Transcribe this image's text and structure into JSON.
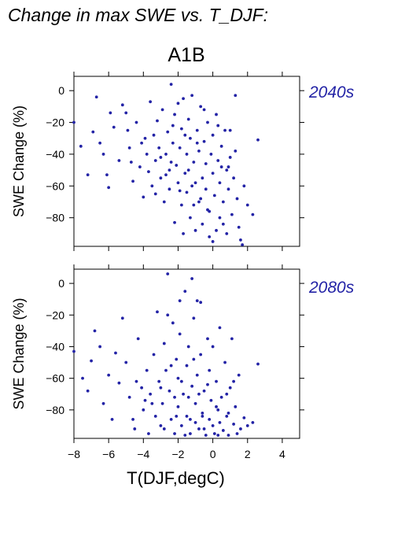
{
  "title": "Change in max SWE vs. T_DJF:",
  "scenario": "A1B",
  "colors": {
    "points": "#2323a6",
    "label": "#2323a6"
  },
  "chart_data": [
    {
      "type": "scatter",
      "period_label": "2040s",
      "xlabel": "",
      "ylabel": "SWE Change (%)",
      "xlim": [
        -8,
        5
      ],
      "ylim": [
        -98,
        9
      ],
      "xticks": [
        -8,
        -6,
        -4,
        -2,
        0,
        2,
        4
      ],
      "yticks": [
        0,
        -20,
        -40,
        -60,
        -80
      ],
      "show_xtick_labels": false,
      "grid": false,
      "points": [
        [
          -8,
          -20
        ],
        [
          -7.6,
          -35
        ],
        [
          -7.2,
          -53
        ],
        [
          -6.9,
          -26
        ],
        [
          -6.7,
          -4
        ],
        [
          -6.5,
          -33
        ],
        [
          -6.3,
          -40
        ],
        [
          -6.1,
          -53
        ],
        [
          -6.0,
          -61
        ],
        [
          -5.9,
          -14
        ],
        [
          -5.7,
          -23
        ],
        [
          -5.4,
          -44
        ],
        [
          -5.2,
          -9
        ],
        [
          -5,
          -14
        ],
        [
          -4.9,
          -25
        ],
        [
          -4.8,
          -36
        ],
        [
          -4.7,
          -45
        ],
        [
          -4.6,
          -57
        ],
        [
          -4.4,
          -20
        ],
        [
          -4.2,
          -48
        ],
        [
          -4,
          -67
        ],
        [
          -3.9,
          -30
        ],
        [
          -3.8,
          -40
        ],
        [
          -3.7,
          -51
        ],
        [
          -3.6,
          -7
        ],
        [
          -3.5,
          -60
        ],
        [
          -3.4,
          -28
        ],
        [
          -3.3,
          -44
        ],
        [
          -3.2,
          -19
        ],
        [
          -3.1,
          -36
        ],
        [
          -3.0,
          -55
        ],
        [
          -2.9,
          -12
        ],
        [
          -2.8,
          -70
        ],
        [
          -2.7,
          -40
        ],
        [
          -2.6,
          -26
        ],
        [
          -2.5,
          -50
        ],
        [
          -2.5,
          -62
        ],
        [
          -2.4,
          4
        ],
        [
          -2.3,
          -33
        ],
        [
          -2.2,
          -83
        ],
        [
          -2.2,
          -15
        ],
        [
          -2.1,
          -47
        ],
        [
          -2.0,
          -58
        ],
        [
          -2.0,
          -8
        ],
        [
          -1.9,
          -36
        ],
        [
          -1.8,
          -72
        ],
        [
          -1.8,
          -24
        ],
        [
          -1.7,
          -90
        ],
        [
          -1.6,
          -52
        ],
        [
          -1.5,
          -40
        ],
        [
          -1.5,
          -64
        ],
        [
          -1.4,
          -18
        ],
        [
          -1.3,
          -30
        ],
        [
          -1.3,
          -80
        ],
        [
          -1.2,
          -3
        ],
        [
          -1.1,
          -45
        ],
        [
          -1.0,
          -58
        ],
        [
          -1.0,
          -88
        ],
        [
          -0.9,
          -25
        ],
        [
          -0.8,
          -70
        ],
        [
          -0.8,
          -38
        ],
        [
          -0.7,
          -10
        ],
        [
          -0.6,
          -55
        ],
        [
          -0.6,
          -84
        ],
        [
          -0.5,
          -32
        ],
        [
          -0.4,
          -62
        ],
        [
          -0.4,
          -46
        ],
        [
          -0.3,
          -20
        ],
        [
          -0.2,
          -76
        ],
        [
          -0.2,
          -92
        ],
        [
          -0.1,
          -40
        ],
        [
          0,
          -52
        ],
        [
          0,
          -28
        ],
        [
          0.1,
          -66
        ],
        [
          0.2,
          -88
        ],
        [
          0.2,
          -15
        ],
        [
          0.3,
          -44
        ],
        [
          0.4,
          -58
        ],
        [
          0.4,
          -80
        ],
        [
          0.5,
          -35
        ],
        [
          0.6,
          -70
        ],
        [
          0.7,
          -25
        ],
        [
          0.8,
          -50
        ],
        [
          0.8,
          -90
        ],
        [
          0.9,
          -62
        ],
        [
          1.0,
          -42
        ],
        [
          1.1,
          -78
        ],
        [
          1.2,
          -55
        ],
        [
          1.3,
          -3
        ],
        [
          1.4,
          -68
        ],
        [
          1.5,
          -86
        ],
        [
          1.6,
          -94
        ],
        [
          1.7,
          -97
        ],
        [
          1.8,
          -60
        ],
        [
          2.0,
          -72
        ],
        [
          2.3,
          -78
        ],
        [
          2.6,
          -31
        ],
        [
          -2.4,
          -45
        ],
        [
          -1.9,
          -63
        ],
        [
          -1.4,
          -50
        ],
        [
          -0.9,
          -33
        ],
        [
          -0.3,
          -75
        ],
        [
          0.3,
          -22
        ],
        [
          0.9,
          -48
        ],
        [
          -2.7,
          -53
        ],
        [
          -3.3,
          -65
        ],
        [
          -1.6,
          -28
        ],
        [
          -1.1,
          -72
        ],
        [
          -0.5,
          -12
        ],
        [
          0.6,
          -84
        ],
        [
          1.3,
          -38
        ],
        [
          -4.1,
          -33
        ],
        [
          -3.0,
          -42
        ],
        [
          -2.3,
          -22
        ],
        [
          -1.7,
          -5
        ],
        [
          -1.2,
          -60
        ],
        [
          -0.7,
          -68
        ],
        [
          0.0,
          -95
        ],
        [
          0.5,
          -48
        ],
        [
          1.0,
          -25
        ]
      ]
    },
    {
      "type": "scatter",
      "period_label": "2080s",
      "xlabel": "T(DJF,degC)",
      "ylabel": "SWE Change (%)",
      "xlim": [
        -8,
        5
      ],
      "ylim": [
        -98,
        9
      ],
      "xticks": [
        -8,
        -6,
        -4,
        -2,
        0,
        2,
        4
      ],
      "xtick_labels": [
        "−8",
        "−6",
        "−4",
        "−2",
        "0",
        "2",
        "4"
      ],
      "yticks": [
        0,
        -20,
        -40,
        -60,
        -80
      ],
      "show_xtick_labels": true,
      "grid": false,
      "points": [
        [
          -8,
          -43
        ],
        [
          -7.5,
          -60
        ],
        [
          -7.2,
          -68
        ],
        [
          -7.0,
          -49
        ],
        [
          -6.8,
          -30
        ],
        [
          -6.5,
          -40
        ],
        [
          -6.3,
          -76
        ],
        [
          -6.0,
          -58
        ],
        [
          -5.8,
          -86
        ],
        [
          -5.6,
          -44
        ],
        [
          -5.4,
          -63
        ],
        [
          -5.2,
          -22
        ],
        [
          -5,
          -50
        ],
        [
          -4.8,
          -72
        ],
        [
          -4.6,
          -86
        ],
        [
          -4.5,
          -92
        ],
        [
          -4.3,
          -35
        ],
        [
          -4.1,
          -66
        ],
        [
          -4,
          -80
        ],
        [
          -3.8,
          -55
        ],
        [
          -3.7,
          -95
        ],
        [
          -3.6,
          -70
        ],
        [
          -3.4,
          -45
        ],
        [
          -3.3,
          -84
        ],
        [
          -3.2,
          -18
        ],
        [
          -3.1,
          -62
        ],
        [
          -3.0,
          -90
        ],
        [
          -2.9,
          -76
        ],
        [
          -2.8,
          -38
        ],
        [
          -2.7,
          -55
        ],
        [
          -2.6,
          6
        ],
        [
          -2.5,
          -68
        ],
        [
          -2.4,
          -86
        ],
        [
          -2.3,
          -25
        ],
        [
          -2.2,
          -95
        ],
        [
          -2.1,
          -48
        ],
        [
          -2.0,
          -78
        ],
        [
          -2.0,
          -60
        ],
        [
          -1.9,
          -32
        ],
        [
          -1.8,
          -90
        ],
        [
          -1.7,
          -70
        ],
        [
          -1.6,
          -5
        ],
        [
          -1.5,
          -84
        ],
        [
          -1.5,
          -52
        ],
        [
          -1.4,
          -40
        ],
        [
          -1.3,
          -95
        ],
        [
          -1.2,
          -65
        ],
        [
          -1.1,
          -22
        ],
        [
          -1.0,
          -88
        ],
        [
          -1.0,
          -76
        ],
        [
          -0.9,
          -58
        ],
        [
          -0.8,
          -92
        ],
        [
          -0.7,
          -12
        ],
        [
          -0.7,
          -45
        ],
        [
          -0.6,
          -82
        ],
        [
          -0.5,
          -68
        ],
        [
          -0.4,
          -96
        ],
        [
          -0.3,
          -35
        ],
        [
          -0.2,
          -86
        ],
        [
          -0.2,
          -55
        ],
        [
          -0.1,
          -74
        ],
        [
          0,
          -90
        ],
        [
          0,
          -40
        ],
        [
          0.1,
          -95
        ],
        [
          0.2,
          -62
        ],
        [
          0.3,
          -80
        ],
        [
          0.4,
          -28
        ],
        [
          0.4,
          -88
        ],
        [
          0.5,
          -72
        ],
        [
          0.6,
          -93
        ],
        [
          0.7,
          -50
        ],
        [
          0.8,
          -84
        ],
        [
          0.9,
          -96
        ],
        [
          1.0,
          -66
        ],
        [
          1.1,
          -35
        ],
        [
          1.2,
          -89
        ],
        [
          1.3,
          -78
        ],
        [
          1.4,
          -95
        ],
        [
          1.5,
          -58
        ],
        [
          1.6,
          -92
        ],
        [
          1.8,
          -85
        ],
        [
          2.0,
          -90
        ],
        [
          2.3,
          -88
        ],
        [
          2.6,
          -51
        ],
        [
          -2.6,
          -20
        ],
        [
          -1.9,
          -11
        ],
        [
          -1.2,
          3
        ],
        [
          -0.9,
          -11
        ],
        [
          -3.5,
          -76
        ],
        [
          -2.8,
          -92
        ],
        [
          -2.2,
          -72
        ],
        [
          -1.6,
          -96
        ],
        [
          -1.1,
          -48
        ],
        [
          -0.5,
          -92
        ],
        [
          0.2,
          -78
        ],
        [
          0.8,
          -70
        ],
        [
          -4.4,
          -62
        ],
        [
          -3.9,
          -74
        ],
        [
          -3.0,
          -66
        ],
        [
          -2.4,
          -52
        ],
        [
          -1.8,
          -62
        ],
        [
          -1.3,
          -86
        ],
        [
          -0.8,
          -70
        ],
        [
          -0.3,
          -64
        ],
        [
          0.3,
          -96
        ],
        [
          0.9,
          -82
        ],
        [
          1.2,
          -62
        ],
        [
          -2.1,
          -84
        ],
        [
          -1.4,
          -72
        ],
        [
          -0.6,
          -84
        ]
      ]
    }
  ]
}
